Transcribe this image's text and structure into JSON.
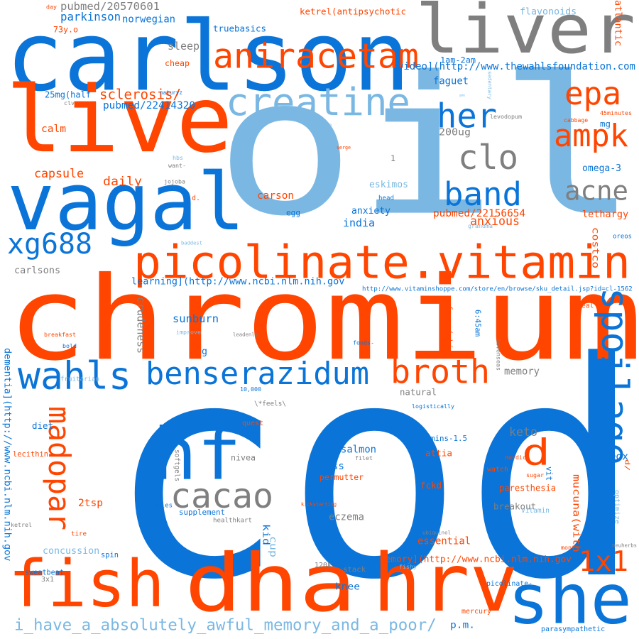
{
  "palette": {
    "orange": "#ff4500",
    "blue": "#0a74d8",
    "gray": "#7f7f7f",
    "light": "#7ab8e3"
  },
  "words": [
    {
      "t": "cod",
      "c": "blue"
    },
    {
      "t": "oil",
      "c": "light"
    },
    {
      "t": "chromium",
      "c": "orange"
    },
    {
      "t": "carlson",
      "c": "blue"
    },
    {
      "t": "liver",
      "c": "gray"
    },
    {
      "t": "live",
      "c": "orange"
    },
    {
      "t": "vagal",
      "c": "blue"
    },
    {
      "t": "fish",
      "c": "orange"
    },
    {
      "t": "dha",
      "c": "orange"
    },
    {
      "t": "hrv",
      "c": "orange"
    },
    {
      "t": "she",
      "c": "blue"
    },
    {
      "t": "picolinate.vitamin",
      "c": "orange"
    },
    {
      "t": "aniracetam",
      "c": "orange"
    },
    {
      "t": "creatine",
      "c": "light"
    },
    {
      "t": "hf",
      "c": "blue"
    },
    {
      "t": "epa",
      "c": "orange"
    },
    {
      "t": "ampk",
      "c": "orange"
    },
    {
      "t": "her",
      "c": "blue"
    },
    {
      "t": "clo",
      "c": "gray"
    },
    {
      "t": "acne",
      "c": "gray"
    },
    {
      "t": "band",
      "c": "blue"
    },
    {
      "t": "xg688",
      "c": "blue"
    },
    {
      "t": "wahls",
      "c": "blue"
    },
    {
      "t": "benserazidum",
      "c": "blue"
    },
    {
      "t": "broth",
      "c": "orange"
    },
    {
      "t": "spoilage",
      "c": "blue"
    },
    {
      "t": "madopar",
      "c": "orange"
    },
    {
      "t": "cacao",
      "c": "gray"
    },
    {
      "t": "d",
      "c": "orange"
    },
    {
      "t": "1x1",
      "c": "orange"
    },
    {
      "t": "i_have_a_absolutely_awful_memory_and_a_poor/",
      "c": "light"
    },
    {
      "t": "dementia](http://www.ncbi.nlm.nih.gov",
      "c": "blue"
    },
    {
      "t": "pubmed/20570601",
      "c": "gray"
    },
    {
      "t": "pubmed/22414320",
      "c": "blue"
    },
    {
      "t": "pubmed/22156654",
      "c": "orange"
    },
    {
      "t": "video](http://www.thewahlsfoundation.com",
      "c": "blue"
    },
    {
      "t": "learning](http://www.ncbi.nlm.nih.gov",
      "c": "blue"
    },
    {
      "t": "memory](http://www.ncbi.nlm.nih.gov",
      "c": "orange"
    },
    {
      "t": "http://www.vitaminshoppe.com/store/en/browse/sku_detail.jsp?id=cl-1562",
      "c": "blue"
    },
    {
      "t": "sclerosis/",
      "c": "orange"
    },
    {
      "t": "parkinson",
      "c": "blue"
    },
    {
      "t": "norwegian",
      "c": "blue"
    },
    {
      "t": "flavonoids",
      "c": "light"
    },
    {
      "t": "atlantic",
      "c": "orange"
    },
    {
      "t": "sleep",
      "c": "gray"
    },
    {
      "t": "cheap",
      "c": "orange"
    },
    {
      "t": "ketrel(antipsychotic",
      "c": "orange"
    },
    {
      "t": "truebasics",
      "c": "blue"
    },
    {
      "t": "1am-2am",
      "c": "blue"
    },
    {
      "t": "73y.o",
      "c": "orange"
    },
    {
      "t": "day",
      "c": "orange"
    },
    {
      "t": "25mg(half",
      "c": "blue"
    },
    {
      "t": "clv",
      "c": "gray"
    },
    {
      "t": "naturyz",
      "c": "blue"
    },
    {
      "t": "calm",
      "c": "orange"
    },
    {
      "t": "capsule",
      "c": "orange"
    },
    {
      "t": "daily",
      "c": "orange"
    },
    {
      "t": "jojoba",
      "c": "gray"
    },
    {
      "t": "carson",
      "c": "orange"
    },
    {
      "t": "carlsons",
      "c": "gray"
    },
    {
      "t": "faguet",
      "c": "blue"
    },
    {
      "t": "levodopum",
      "c": "gray"
    },
    {
      "t": "200ug",
      "c": "gray"
    },
    {
      "t": "45minutes",
      "c": "orange"
    },
    {
      "t": "mg",
      "c": "blue"
    },
    {
      "t": "cabbage",
      "c": "orange"
    },
    {
      "t": "omega-3",
      "c": "blue"
    },
    {
      "t": "lethargy",
      "c": "orange"
    },
    {
      "t": "oreos",
      "c": "blue"
    },
    {
      "t": "costco",
      "c": "orange"
    },
    {
      "t": "eskimos",
      "c": "light"
    },
    {
      "t": "anxious",
      "c": "orange"
    },
    {
      "t": "anxiety",
      "c": "blue"
    },
    {
      "t": "india",
      "c": "blue"
    },
    {
      "t": "head",
      "c": "blue"
    },
    {
      "t": "egg",
      "c": "blue"
    },
    {
      "t": "sunburn",
      "c": "blue"
    },
    {
      "t": "improve",
      "c": "light"
    },
    {
      "t": "crudeness",
      "c": "gray"
    },
    {
      "t": "breakfast",
      "c": "orange"
    },
    {
      "t": "bold",
      "c": "blue"
    },
    {
      "t": "g",
      "c": "blue"
    },
    {
      "t": "foods-",
      "c": "blue"
    },
    {
      "t": "force(which",
      "c": "orange"
    },
    {
      "t": "memory",
      "c": "gray"
    },
    {
      "t": "natural",
      "c": "gray"
    },
    {
      "t": "fruitarian",
      "c": "light"
    },
    {
      "t": "logistically",
      "c": "blue"
    },
    {
      "t": "diet",
      "c": "blue"
    },
    {
      "t": "lecithin",
      "c": "orange"
    },
    {
      "t": "salmon",
      "c": "blue"
    },
    {
      "t": "fckd",
      "c": "orange"
    },
    {
      "t": "keto",
      "c": "gray"
    },
    {
      "t": "40mins-1.5",
      "c": "blue"
    },
    {
      "t": "nordic",
      "c": "orange"
    },
    {
      "t": "tedx",
      "c": "blue"
    },
    {
      "t": "attia",
      "c": "orange"
    },
    {
      "t": "watch",
      "c": "orange"
    },
    {
      "t": "sugar",
      "c": "orange"
    },
    {
      "t": "piss",
      "c": "blue"
    },
    {
      "t": "permutter",
      "c": "orange"
    },
    {
      "t": "paresthesia",
      "c": "orange"
    },
    {
      "t": "kickstarting",
      "c": "orange"
    },
    {
      "t": "eczema",
      "c": "gray"
    },
    {
      "t": "breakout",
      "c": "gray"
    },
    {
      "t": "2tsp",
      "c": "orange"
    },
    {
      "t": "supplement",
      "c": "blue"
    },
    {
      "t": "pimples",
      "c": "blue"
    },
    {
      "t": "healthkart",
      "c": "gray"
    },
    {
      "t": "ketrel",
      "c": "gray"
    },
    {
      "t": "tire",
      "c": "orange"
    },
    {
      "t": "concussion",
      "c": "light"
    },
    {
      "t": "kid",
      "c": "blue"
    },
    {
      "t": "cup",
      "c": "light"
    },
    {
      "t": "essential",
      "c": "orange"
    },
    {
      "t": "ubiquinol",
      "c": "gray"
    },
    {
      "t": "mucuna(with",
      "c": "orange"
    },
    {
      "t": "optimize",
      "c": "light"
    },
    {
      "t": "spin",
      "c": "blue"
    },
    {
      "t": "sweatbeat",
      "c": "blue"
    },
    {
      "t": "120k.",
      "c": "gray"
    },
    {
      "t": "stack",
      "c": "gray"
    },
    {
      "t": "knee",
      "c": "blue"
    },
    {
      "t": "fishy",
      "c": "light"
    },
    {
      "t": "picolinate-",
      "c": "blue"
    },
    {
      "t": "mercury",
      "c": "orange"
    },
    {
      "t": "p.m.",
      "c": "blue"
    },
    {
      "t": "parasympathetic",
      "c": "blue"
    },
    {
      "t": "neuherbs",
      "c": "gray"
    },
    {
      "t": "3x1",
      "c": "gray"
    },
    {
      "t": "softgels",
      "c": "gray"
    },
    {
      "t": "nivea",
      "c": "gray"
    },
    {
      "t": "filet",
      "c": "gray"
    },
    {
      "t": "10,000",
      "c": "blue"
    },
    {
      "t": "\\*feels\\",
      "c": "gray"
    },
    {
      "t": "\\*real\\",
      "c": "orange"
    },
    {
      "t": "leadenly",
      "c": "gray"
    },
    {
      "t": "quest",
      "c": "orange"
    },
    {
      "t": "6:45am",
      "c": "blue"
    },
    {
      "t": "sevenseas",
      "c": "gray"
    },
    {
      "t": "vit",
      "c": "blue"
    },
    {
      "t": "vitamin",
      "c": "light"
    },
    {
      "t": "d/",
      "c": "orange"
    },
    {
      "t": "hbs",
      "c": "light"
    },
    {
      "t": "want-",
      "c": "gray"
    },
    {
      "t": "rosita",
      "c": "light"
    },
    {
      "t": "serge",
      "c": "orange"
    },
    {
      "t": "baddest",
      "c": "light"
    },
    {
      "t": "grandma",
      "c": "light"
    },
    {
      "t": "gabe",
      "c": "light"
    },
    {
      "t": "sedentary",
      "c": "light"
    },
    {
      "t": "month",
      "c": "orange"
    },
    {
      "t": "d.",
      "c": "orange"
    },
    {
      "t": "1",
      "c": "gray"
    }
  ]
}
